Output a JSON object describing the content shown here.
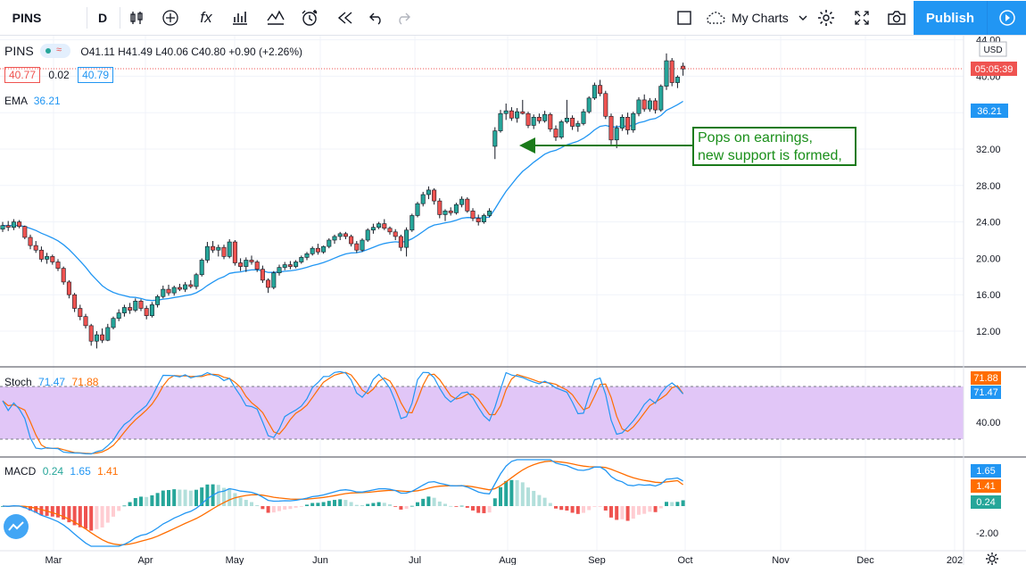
{
  "toolbar": {
    "symbol": "PINS",
    "interval": "D",
    "fx": "fx",
    "my_charts": "My Charts",
    "publish": "Publish"
  },
  "main_legend": {
    "symbol": "PINS",
    "ohlc": "O41.11  H41.49  L40.06  C40.80  +0.90 (+2.26%)",
    "bid": "40.77",
    "spread": "0.02",
    "ask": "40.79",
    "ema_label": "EMA",
    "ema_value": "36.21"
  },
  "stoch_legend": {
    "label": "Stoch",
    "k": "71.47",
    "d": "71.88"
  },
  "macd_legend": {
    "label": "MACD",
    "hist": "0.24",
    "macd": "1.65",
    "signal": "1.41"
  },
  "annotation": {
    "line1": "Pops on earnings,",
    "line2": "new support is formed,"
  },
  "price_axis": {
    "currency": "USD",
    "ticks": [
      "44.00",
      "40.00",
      "36.00",
      "32.00",
      "28.00",
      "24.00",
      "20.00",
      "16.00",
      "12.00"
    ],
    "last_price_badge": "05:05:39",
    "ema_badge": "36.21"
  },
  "stoch_axis": {
    "tick": "40.00",
    "badge_d": "71.88",
    "badge_k": "71.47"
  },
  "macd_axis": {
    "tick": "-2.00",
    "badge_macd": "1.65",
    "badge_signal": "1.41",
    "badge_hist": "0.24"
  },
  "time_axis": [
    "Mar",
    "Apr",
    "May",
    "Jun",
    "Jul",
    "Aug",
    "Sep",
    "Oct",
    "Nov",
    "Dec",
    "202"
  ],
  "colors": {
    "up": "#26a69a",
    "down": "#ef5350",
    "ema": "#2196f3",
    "stoch_k": "#2196f3",
    "stoch_d": "#ff6d00",
    "band": "#e1c6f7",
    "accent": "#2196f3"
  },
  "chart_data": {
    "type": "candlestick",
    "title": "PINS",
    "interval": "D",
    "x_range": [
      "2019-02-22",
      "2019-09-27"
    ],
    "y_range": [
      10,
      44
    ],
    "candles": [
      [
        23.2,
        24.0,
        22.9,
        23.6
      ],
      [
        23.6,
        24.1,
        23.0,
        23.4
      ],
      [
        23.4,
        24.3,
        23.1,
        24.0
      ],
      [
        24.0,
        24.2,
        23.3,
        23.5
      ],
      [
        23.5,
        23.6,
        22.1,
        22.3
      ],
      [
        22.3,
        22.6,
        21.0,
        21.4
      ],
      [
        21.4,
        21.9,
        20.6,
        20.9
      ],
      [
        20.9,
        21.3,
        19.6,
        19.9
      ],
      [
        19.9,
        20.6,
        19.4,
        20.2
      ],
      [
        20.2,
        20.4,
        19.3,
        19.6
      ],
      [
        19.6,
        19.9,
        18.6,
        18.9
      ],
      [
        18.9,
        19.1,
        17.1,
        17.4
      ],
      [
        17.4,
        17.6,
        15.6,
        16.0
      ],
      [
        16.0,
        16.2,
        14.1,
        14.5
      ],
      [
        14.5,
        14.9,
        13.2,
        13.6
      ],
      [
        13.6,
        13.9,
        12.3,
        12.6
      ],
      [
        12.6,
        12.8,
        10.4,
        10.9
      ],
      [
        10.9,
        12.0,
        10.1,
        11.6
      ],
      [
        11.6,
        12.3,
        10.7,
        11.0
      ],
      [
        11.0,
        12.8,
        10.9,
        12.4
      ],
      [
        12.4,
        13.6,
        12.2,
        13.4
      ],
      [
        13.4,
        14.4,
        13.1,
        14.0
      ],
      [
        14.0,
        14.9,
        13.6,
        14.6
      ],
      [
        14.6,
        15.1,
        13.9,
        14.3
      ],
      [
        14.3,
        15.6,
        14.1,
        15.3
      ],
      [
        15.3,
        15.5,
        14.2,
        14.5
      ],
      [
        14.5,
        14.8,
        13.3,
        13.7
      ],
      [
        13.7,
        15.2,
        13.5,
        14.9
      ],
      [
        14.9,
        16.0,
        14.6,
        15.8
      ],
      [
        15.8,
        17.0,
        15.6,
        16.6
      ],
      [
        16.6,
        17.1,
        15.9,
        16.2
      ],
      [
        16.2,
        17.0,
        15.9,
        16.8
      ],
      [
        16.8,
        17.2,
        16.4,
        16.6
      ],
      [
        16.6,
        17.4,
        16.3,
        17.1
      ],
      [
        17.1,
        17.6,
        16.7,
        16.9
      ],
      [
        16.9,
        18.4,
        16.6,
        18.2
      ],
      [
        18.2,
        20.0,
        18.0,
        19.8
      ],
      [
        19.8,
        21.8,
        19.5,
        21.3
      ],
      [
        21.3,
        21.9,
        20.6,
        20.9
      ],
      [
        20.9,
        21.5,
        20.2,
        21.2
      ],
      [
        21.2,
        21.5,
        19.9,
        20.2
      ],
      [
        20.2,
        22.1,
        20.0,
        21.8
      ],
      [
        21.8,
        22.0,
        19.2,
        19.5
      ],
      [
        19.5,
        20.0,
        18.6,
        19.1
      ],
      [
        19.1,
        20.1,
        18.5,
        19.8
      ],
      [
        19.8,
        20.3,
        19.3,
        19.6
      ],
      [
        19.6,
        19.8,
        18.5,
        18.8
      ],
      [
        18.8,
        19.2,
        17.3,
        17.6
      ],
      [
        17.6,
        17.8,
        16.2,
        16.8
      ],
      [
        16.8,
        18.6,
        16.6,
        18.4
      ],
      [
        18.4,
        19.3,
        18.1,
        19.0
      ],
      [
        19.0,
        19.6,
        18.7,
        19.3
      ],
      [
        19.3,
        19.7,
        18.8,
        19.1
      ],
      [
        19.1,
        19.8,
        18.9,
        19.6
      ],
      [
        19.6,
        20.3,
        19.4,
        20.1
      ],
      [
        20.1,
        20.7,
        19.8,
        20.5
      ],
      [
        20.5,
        21.3,
        20.3,
        21.1
      ],
      [
        21.1,
        21.6,
        20.4,
        20.7
      ],
      [
        20.7,
        21.4,
        20.5,
        21.3
      ],
      [
        21.3,
        22.2,
        21.1,
        22.0
      ],
      [
        22.0,
        22.6,
        21.6,
        22.4
      ],
      [
        22.4,
        22.9,
        22.0,
        22.7
      ],
      [
        22.7,
        22.9,
        22.1,
        22.4
      ],
      [
        22.4,
        22.6,
        21.3,
        21.6
      ],
      [
        21.6,
        21.9,
        20.6,
        20.9
      ],
      [
        20.9,
        22.2,
        20.7,
        22.0
      ],
      [
        22.0,
        23.3,
        21.8,
        23.1
      ],
      [
        23.1,
        23.8,
        22.7,
        23.4
      ],
      [
        23.4,
        24.0,
        23.2,
        23.8
      ],
      [
        23.8,
        24.3,
        23.1,
        23.3
      ],
      [
        23.3,
        23.5,
        22.6,
        22.9
      ],
      [
        22.9,
        23.2,
        22.0,
        22.4
      ],
      [
        22.4,
        22.6,
        20.8,
        21.2
      ],
      [
        21.2,
        23.4,
        20.2,
        23.1
      ],
      [
        23.1,
        24.9,
        22.9,
        24.7
      ],
      [
        24.7,
        26.2,
        24.5,
        26.0
      ],
      [
        26.0,
        27.3,
        25.7,
        27.0
      ],
      [
        27.0,
        27.9,
        26.5,
        27.5
      ],
      [
        27.5,
        27.7,
        25.9,
        26.3
      ],
      [
        26.3,
        26.6,
        24.4,
        24.8
      ],
      [
        24.8,
        25.4,
        24.1,
        25.2
      ],
      [
        25.2,
        25.6,
        24.7,
        25.0
      ],
      [
        25.0,
        26.1,
        24.8,
        25.9
      ],
      [
        25.9,
        26.8,
        25.6,
        26.5
      ],
      [
        26.5,
        26.7,
        25.0,
        25.2
      ],
      [
        25.2,
        25.5,
        24.1,
        24.4
      ],
      [
        24.4,
        24.8,
        23.6,
        24.0
      ],
      [
        24.0,
        24.9,
        23.8,
        24.7
      ],
      [
        24.7,
        25.5,
        24.5,
        25.2
      ],
      [
        32.3,
        34.4,
        30.9,
        34.0
      ],
      [
        34.0,
        36.3,
        33.8,
        35.9
      ],
      [
        35.9,
        37.0,
        35.2,
        36.2
      ],
      [
        36.2,
        36.6,
        35.1,
        35.4
      ],
      [
        35.4,
        36.5,
        34.9,
        36.1
      ],
      [
        36.1,
        37.4,
        35.8,
        35.9
      ],
      [
        35.9,
        36.1,
        34.3,
        34.6
      ],
      [
        34.6,
        35.8,
        34.2,
        35.5
      ],
      [
        35.5,
        35.9,
        34.8,
        35.1
      ],
      [
        35.1,
        36.2,
        34.9,
        35.8
      ],
      [
        35.8,
        36.0,
        33.9,
        34.2
      ],
      [
        34.2,
        34.6,
        32.9,
        33.3
      ],
      [
        33.3,
        35.2,
        33.1,
        35.0
      ],
      [
        35.0,
        37.4,
        34.8,
        35.4
      ],
      [
        35.4,
        35.7,
        34.1,
        34.5
      ],
      [
        34.5,
        35.1,
        33.9,
        34.8
      ],
      [
        34.8,
        36.4,
        34.6,
        36.1
      ],
      [
        36.1,
        37.8,
        35.9,
        37.6
      ],
      [
        37.6,
        39.3,
        37.4,
        39.0
      ],
      [
        39.0,
        39.6,
        37.8,
        38.1
      ],
      [
        38.1,
        38.4,
        35.3,
        35.6
      ],
      [
        35.6,
        35.9,
        32.5,
        33.0
      ],
      [
        33.0,
        34.6,
        32.1,
        34.3
      ],
      [
        34.3,
        35.8,
        34.0,
        35.5
      ],
      [
        35.5,
        36.0,
        33.6,
        34.1
      ],
      [
        34.1,
        36.1,
        33.8,
        35.9
      ],
      [
        35.9,
        37.7,
        35.6,
        37.4
      ],
      [
        37.4,
        38.0,
        36.1,
        36.4
      ],
      [
        36.4,
        37.6,
        36.1,
        37.3
      ],
      [
        37.3,
        37.6,
        35.9,
        36.3
      ],
      [
        36.3,
        39.1,
        36.1,
        38.9
      ],
      [
        38.9,
        42.5,
        38.5,
        41.7
      ],
      [
        41.7,
        42.0,
        38.9,
        39.3
      ],
      [
        39.3,
        40.1,
        38.7,
        39.9
      ],
      [
        41.11,
        41.49,
        40.06,
        40.8
      ]
    ],
    "ema": [
      22.3,
      15.5,
      16.7,
      18.1,
      20.1,
      21.9,
      23.8,
      25.5,
      30.0,
      33.3,
      35.5,
      36.21
    ],
    "stoch": {
      "k_last": 71.47,
      "d_last": 71.88,
      "band": [
        20,
        80
      ]
    },
    "macd": {
      "macd_last": 1.65,
      "signal_last": 1.41,
      "hist_last": 0.24
    }
  }
}
